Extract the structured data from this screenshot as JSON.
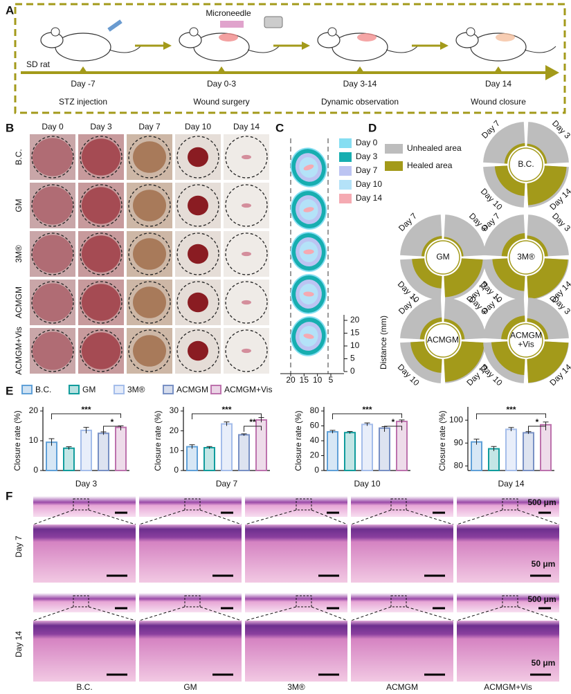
{
  "panel_labels": [
    "A",
    "B",
    "C",
    "D",
    "E",
    "F"
  ],
  "timeline": {
    "microneedle": "Microneedle",
    "animal": "SD rat",
    "steps": [
      {
        "day": "Day -7",
        "label": "STZ injection"
      },
      {
        "day": "Day 0-3",
        "label": "Wound surgery"
      },
      {
        "day": "Day 3-14",
        "label": "Dynamic observation"
      },
      {
        "day": "Day 14",
        "label": "Wound closure"
      }
    ]
  },
  "photos": {
    "days": [
      "Day 0",
      "Day 3",
      "Day 7",
      "Day 10",
      "Day 14"
    ],
    "groups": [
      "B.C.",
      "GM",
      "3M®",
      "ACMGM",
      "ACMGM+Vis"
    ]
  },
  "trace": {
    "legend": [
      "Day 0",
      "Day 3",
      "Day 7",
      "Day 10",
      "Day 14"
    ],
    "colors": [
      "#86def2",
      "#17aeb0",
      "#bcc4f2",
      "#b4e2f8",
      "#f5aab2"
    ],
    "axis_label": "Distance (mm)",
    "yticks": [
      0,
      5,
      10,
      15,
      20
    ],
    "xticks": [
      20,
      15,
      10,
      5
    ]
  },
  "rose": {
    "legend": [
      "Unhealed area",
      "Healed area"
    ],
    "colors": [
      "#bdbdbd",
      "#a39a1a"
    ],
    "groups": [
      [
        "B.C."
      ],
      [
        "GM"
      ],
      [
        "3M®"
      ],
      [
        "ACMGM"
      ],
      [
        "ACMGM",
        "+Vis"
      ]
    ]
  },
  "histology": {
    "days": [
      "Day 7",
      "Day 14"
    ],
    "scale_large": "500 μm",
    "scale_small": "50 μm"
  },
  "chart_data": [
    {
      "type": "bar",
      "ylabel": "Closure rate (%)",
      "xlabel": "Day 3",
      "categories": [
        "B.C.",
        "GM",
        "3M®",
        "ACMGM",
        "ACMGM+Vis"
      ],
      "colors": [
        "#5fa0d8",
        "#109c9c",
        "#a4bdea",
        "#7890c4",
        "#bd72ad"
      ],
      "values": [
        9.5,
        7.5,
        13.5,
        12.5,
        14.5
      ],
      "errors": [
        1.2,
        0.5,
        1.0,
        0.5,
        0.5
      ],
      "ylim": [
        0,
        20
      ],
      "yticks": [
        0,
        10,
        20
      ],
      "significance": [
        "***",
        "*"
      ]
    },
    {
      "type": "bar",
      "ylabel": "Closure rate (%)",
      "xlabel": "Day 7",
      "categories": [
        "B.C.",
        "GM",
        "3M®",
        "ACMGM",
        "ACMGM+Vis"
      ],
      "colors": [
        "#5fa0d8",
        "#109c9c",
        "#a4bdea",
        "#7890c4",
        "#bd72ad"
      ],
      "values": [
        12,
        11.5,
        23.5,
        18,
        25.5
      ],
      "errors": [
        1.0,
        0.6,
        1.0,
        0.5,
        1.2
      ],
      "ylim": [
        0,
        30
      ],
      "yticks": [
        0,
        10,
        20,
        30
      ],
      "significance": [
        "***",
        "**"
      ]
    },
    {
      "type": "bar",
      "ylabel": "Closure rate (%)",
      "xlabel": "Day 10",
      "categories": [
        "B.C.",
        "GM",
        "3M®",
        "ACMGM",
        "ACMGM+Vis"
      ],
      "colors": [
        "#5fa0d8",
        "#109c9c",
        "#a4bdea",
        "#7890c4",
        "#bd72ad"
      ],
      "values": [
        52,
        51,
        62,
        57,
        66
      ],
      "errors": [
        2,
        1.5,
        2,
        2,
        2
      ],
      "ylim": [
        0,
        80
      ],
      "yticks": [
        0,
        20,
        40,
        60,
        80
      ],
      "significance": [
        "***",
        "*"
      ]
    },
    {
      "type": "bar",
      "ylabel": "Closure rate (%)",
      "xlabel": "Day 14",
      "categories": [
        "B.C.",
        "GM",
        "3M®",
        "ACMGM",
        "ACMGM+Vis"
      ],
      "colors": [
        "#5fa0d8",
        "#109c9c",
        "#a4bdea",
        "#7890c4",
        "#bd72ad"
      ],
      "values": [
        90.5,
        87.5,
        96,
        94.5,
        98
      ],
      "errors": [
        1.2,
        1.0,
        0.8,
        0.5,
        1.2
      ],
      "ylim": [
        78,
        104
      ],
      "yticks": [
        80,
        90,
        100
      ],
      "significance": [
        "***",
        "*"
      ]
    }
  ]
}
